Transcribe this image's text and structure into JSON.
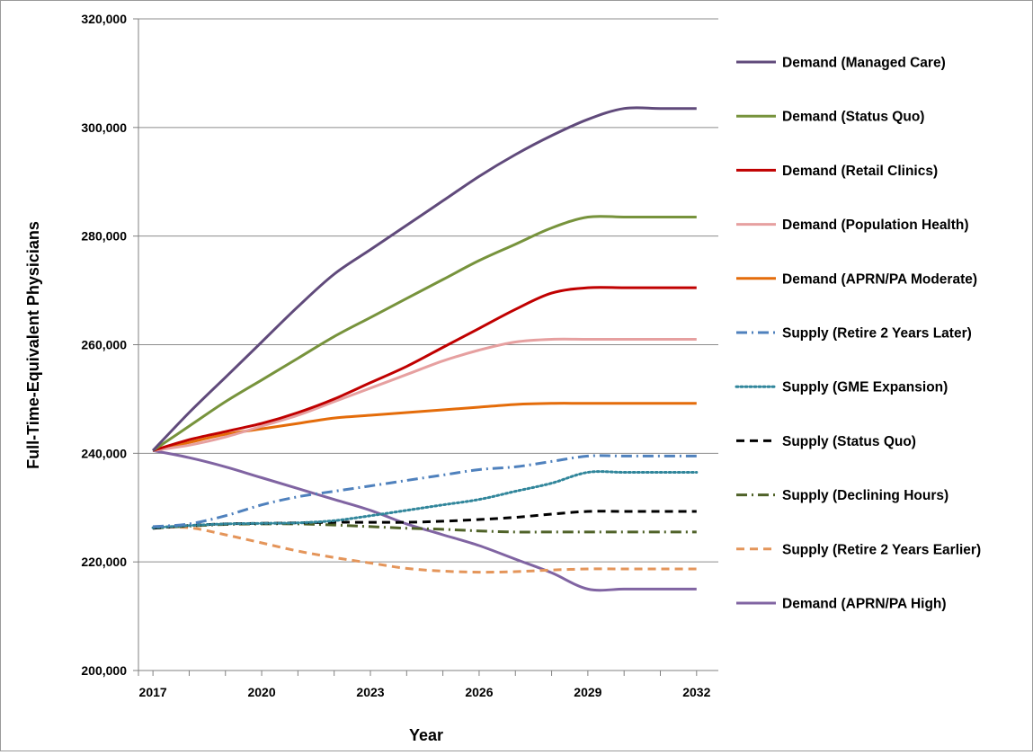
{
  "chart_data": {
    "type": "line",
    "title": "",
    "xlabel": "Year",
    "ylabel": "Full-Time-Equivalent Physicians",
    "x": [
      2017,
      2018,
      2019,
      2020,
      2021,
      2022,
      2023,
      2024,
      2025,
      2026,
      2027,
      2028,
      2029,
      2030,
      2031,
      2032
    ],
    "x_ticks": [
      "2017",
      "2020",
      "2023",
      "2026",
      "2029",
      "2032"
    ],
    "xlim": [
      2016.6,
      2032.6
    ],
    "ylim": [
      200000,
      320000
    ],
    "y_ticks": [
      "200,000",
      "220,000",
      "240,000",
      "260,000",
      "280,000",
      "300,000",
      "320,000"
    ],
    "grid": "horizontal",
    "legend_position": "right",
    "series": [
      {
        "name": "Demand (Managed Care)",
        "color": "#604A7B",
        "dash": "solid",
        "values": [
          240500,
          247500,
          254000,
          260500,
          267000,
          273000,
          277500,
          282000,
          286500,
          291000,
          295000,
          298500,
          301500,
          303500,
          303500,
          303500
        ]
      },
      {
        "name": "Demand (Status Quo)",
        "color": "#77933C",
        "dash": "solid",
        "values": [
          240500,
          245000,
          249500,
          253500,
          257500,
          261500,
          265000,
          268500,
          272000,
          275500,
          278500,
          281500,
          283500,
          283500,
          283500,
          283500
        ]
      },
      {
        "name": "Demand (Retail Clinics)",
        "color": "#C00000",
        "dash": "solid",
        "values": [
          240500,
          242500,
          244000,
          245500,
          247500,
          250000,
          253000,
          256000,
          259500,
          263000,
          266500,
          269500,
          270500,
          270500,
          270500,
          270500
        ]
      },
      {
        "name": "Demand (Population Health)",
        "color": "#E6A0A0",
        "dash": "solid",
        "values": [
          240500,
          241500,
          243000,
          245000,
          247000,
          249500,
          252000,
          254500,
          257000,
          259000,
          260500,
          261000,
          261000,
          261000,
          261000,
          261000
        ]
      },
      {
        "name": "Demand (APRN/PA Moderate)",
        "color": "#E46C0A",
        "dash": "solid",
        "values": [
          240500,
          242000,
          243500,
          244500,
          245500,
          246500,
          247000,
          247500,
          248000,
          248500,
          249000,
          249200,
          249200,
          249200,
          249200,
          249200
        ]
      },
      {
        "name": "Supply (Retire 2 Years Later)",
        "color": "#4F81BD",
        "dash": "dashdot",
        "values": [
          226500,
          227000,
          228500,
          230500,
          232000,
          233000,
          234000,
          235000,
          236000,
          237000,
          237500,
          238500,
          239500,
          239500,
          239500,
          239500
        ]
      },
      {
        "name": "Supply (GME Expansion)",
        "color": "#31869B",
        "dash": "dotted",
        "values": [
          226300,
          226700,
          227000,
          227100,
          227200,
          227600,
          228500,
          229500,
          230500,
          231500,
          233000,
          234500,
          236500,
          236500,
          236500,
          236500
        ]
      },
      {
        "name": "Supply (Status Quo)",
        "color": "#000000",
        "dash": "dashed",
        "values": [
          226200,
          226700,
          227000,
          227100,
          227200,
          227300,
          227300,
          227300,
          227500,
          227800,
          228200,
          228800,
          229300,
          229300,
          229300,
          229300
        ]
      },
      {
        "name": "Supply (Declining Hours)",
        "color": "#4F6228",
        "dash": "dashdot",
        "values": [
          226200,
          226600,
          226900,
          227000,
          227000,
          226800,
          226500,
          226200,
          226000,
          225700,
          225500,
          225500,
          225500,
          225500,
          225500,
          225500
        ]
      },
      {
        "name": "Supply (Retire 2 Years Earlier)",
        "color": "#E4955A",
        "dash": "dashed",
        "values": [
          226300,
          226300,
          225000,
          223500,
          222000,
          220800,
          219800,
          218800,
          218300,
          218100,
          218200,
          218500,
          218700,
          218700,
          218700,
          218700
        ]
      },
      {
        "name": "Demand (APRN/PA High)",
        "color": "#8064A2",
        "dash": "solid",
        "values": [
          240500,
          239200,
          237500,
          235500,
          233500,
          231500,
          229500,
          227000,
          225000,
          223000,
          220500,
          218000,
          215000,
          215000,
          215000,
          215000
        ]
      }
    ]
  }
}
